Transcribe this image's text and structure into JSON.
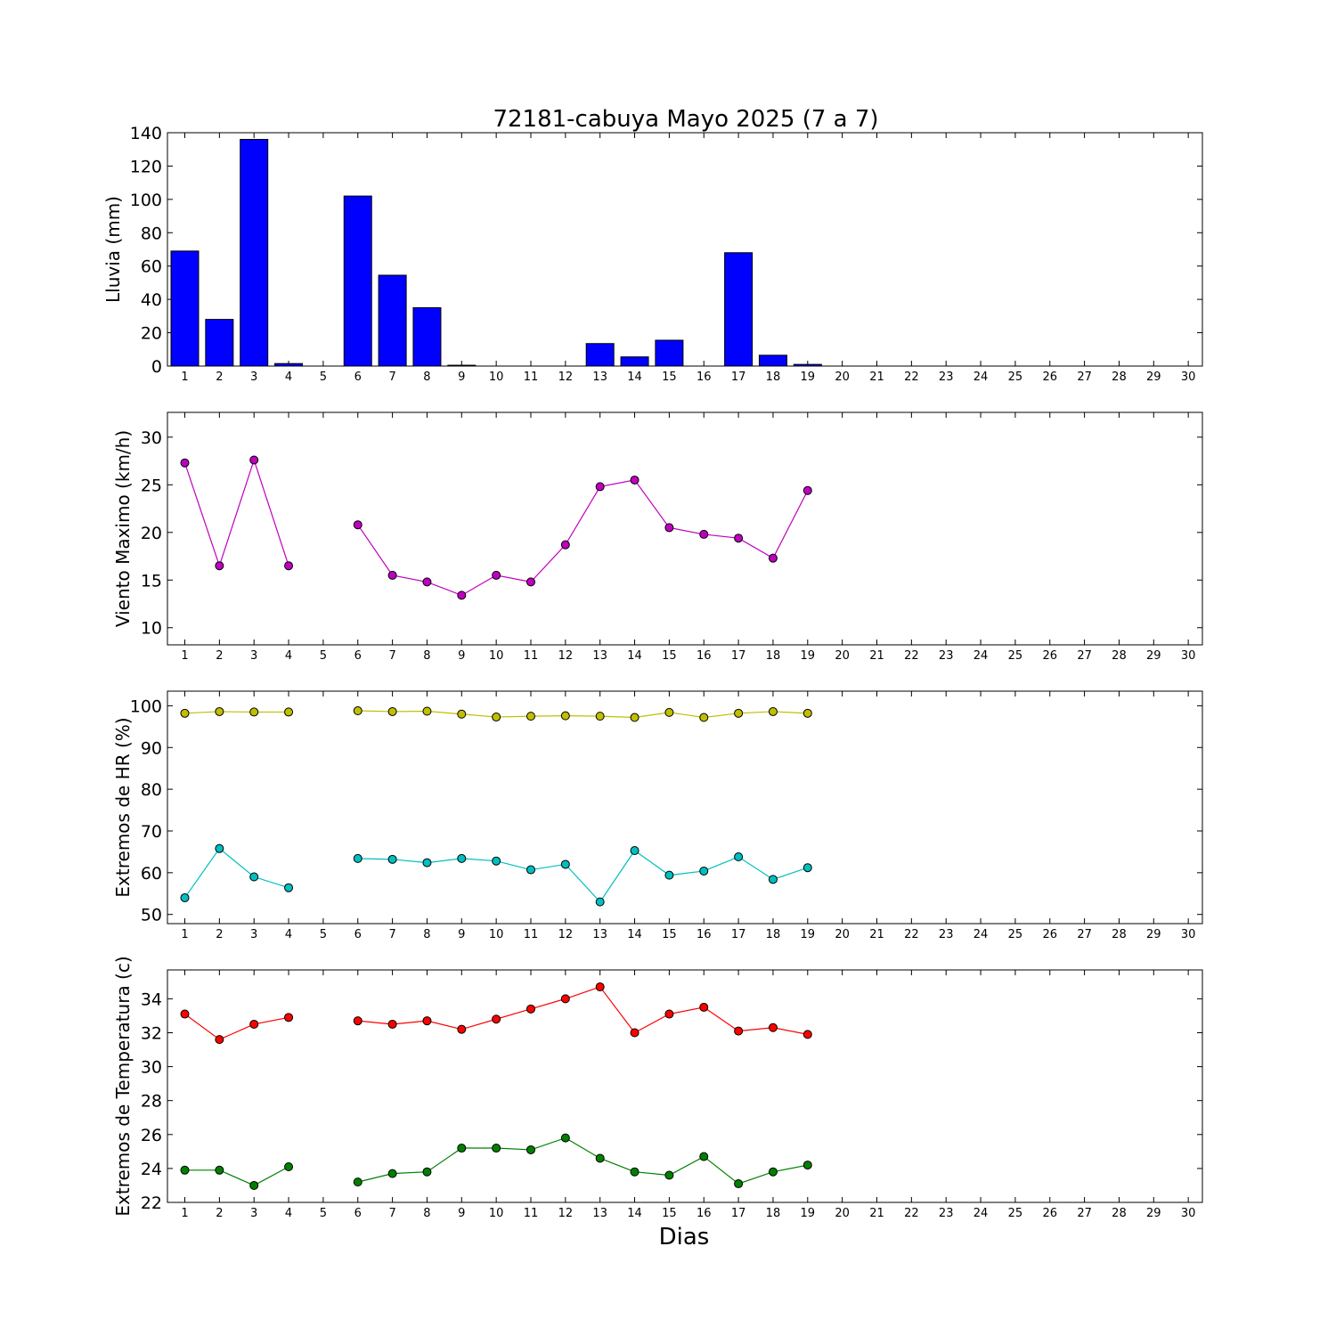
{
  "chart_data": [
    {
      "type": "bar",
      "title": "72181-cabuya Mayo 2025  (7 a 7)",
      "xlabel": "",
      "ylabel": "Lluvia (mm)",
      "categories": [
        "1",
        "2",
        "3",
        "4",
        "5",
        "6",
        "7",
        "8",
        "9",
        "10",
        "11",
        "12",
        "13",
        "14",
        "15",
        "16",
        "17",
        "18",
        "19",
        "20",
        "21",
        "22",
        "23",
        "24",
        "25",
        "26",
        "27",
        "28",
        "29",
        "30"
      ],
      "values": [
        69,
        28,
        136,
        1.5,
        0,
        102,
        54.5,
        35,
        0.5,
        0,
        0,
        0,
        13.5,
        5.5,
        15.5,
        0,
        68,
        6.5,
        1,
        null,
        null,
        null,
        null,
        null,
        null,
        null,
        null,
        null,
        null,
        null
      ],
      "yticks": [
        0,
        20,
        40,
        60,
        80,
        100,
        120,
        140
      ],
      "ylim": [
        0,
        140
      ],
      "color": "#0000ff",
      "grid": false
    },
    {
      "type": "line",
      "xlabel": "",
      "ylabel": "Viento Maximo (km/h)",
      "categories": [
        "1",
        "2",
        "3",
        "4",
        "5",
        "6",
        "7",
        "8",
        "9",
        "10",
        "11",
        "12",
        "13",
        "14",
        "15",
        "16",
        "17",
        "18",
        "19",
        "20",
        "21",
        "22",
        "23",
        "24",
        "25",
        "26",
        "27",
        "28",
        "29",
        "30"
      ],
      "series": [
        {
          "color": "#bf00bf",
          "values": [
            27.3,
            16.5,
            27.6,
            16.5,
            null,
            20.8,
            15.5,
            14.8,
            13.4,
            15.5,
            14.8,
            18.7,
            24.8,
            25.5,
            20.5,
            19.8,
            19.4,
            17.3,
            24.4,
            null,
            null,
            null,
            null,
            null,
            null,
            null,
            null,
            null,
            null,
            null
          ]
        }
      ],
      "yticks": [
        10,
        15,
        20,
        25,
        30
      ],
      "ylim": [
        8.2,
        32.6
      ],
      "grid": false
    },
    {
      "type": "line",
      "xlabel": "",
      "ylabel": "Extremos de HR (%)",
      "categories": [
        "1",
        "2",
        "3",
        "4",
        "5",
        "6",
        "7",
        "8",
        "9",
        "10",
        "11",
        "12",
        "13",
        "14",
        "15",
        "16",
        "17",
        "18",
        "19",
        "20",
        "21",
        "22",
        "23",
        "24",
        "25",
        "26",
        "27",
        "28",
        "29",
        "30"
      ],
      "series": [
        {
          "color": "#bfbf00",
          "values": [
            98.2,
            98.6,
            98.5,
            98.5,
            null,
            98.8,
            98.6,
            98.7,
            98.0,
            97.3,
            97.5,
            97.6,
            97.5,
            97.2,
            98.4,
            97.2,
            98.2,
            98.6,
            98.2,
            null,
            null,
            null,
            null,
            null,
            null,
            null,
            null,
            null,
            null,
            null
          ]
        },
        {
          "color": "#00bfbf",
          "values": [
            54.0,
            65.8,
            59.0,
            56.4,
            null,
            63.4,
            63.2,
            62.4,
            63.4,
            62.8,
            60.7,
            62.0,
            53.0,
            65.3,
            59.4,
            60.4,
            63.8,
            58.4,
            61.2,
            null,
            null,
            null,
            null,
            null,
            null,
            null,
            null,
            null,
            null,
            null
          ]
        }
      ],
      "yticks": [
        50,
        60,
        70,
        80,
        90,
        100
      ],
      "ylim": [
        47.8,
        103.5
      ],
      "grid": false
    },
    {
      "type": "line",
      "xlabel": "Dias",
      "ylabel": "Extremos de Temperatura (c)",
      "categories": [
        "1",
        "2",
        "3",
        "4",
        "5",
        "6",
        "7",
        "8",
        "9",
        "10",
        "11",
        "12",
        "13",
        "14",
        "15",
        "16",
        "17",
        "18",
        "19",
        "20",
        "21",
        "22",
        "23",
        "24",
        "25",
        "26",
        "27",
        "28",
        "29",
        "30"
      ],
      "series": [
        {
          "color": "#ff0000",
          "values": [
            33.1,
            31.6,
            32.5,
            32.9,
            null,
            32.7,
            32.5,
            32.7,
            32.2,
            32.8,
            33.4,
            34.0,
            34.7,
            32.0,
            33.1,
            33.5,
            32.1,
            32.3,
            31.9,
            null,
            null,
            null,
            null,
            null,
            null,
            null,
            null,
            null,
            null,
            null
          ]
        },
        {
          "color": "#008000",
          "values": [
            23.9,
            23.9,
            23.0,
            24.1,
            null,
            23.2,
            23.7,
            23.8,
            25.2,
            25.2,
            25.1,
            25.8,
            24.6,
            23.8,
            23.6,
            24.7,
            23.1,
            23.8,
            24.2,
            null,
            null,
            null,
            null,
            null,
            null,
            null,
            null,
            null,
            null,
            null
          ]
        }
      ],
      "yticks": [
        22,
        24,
        26,
        28,
        30,
        32,
        34
      ],
      "ylim": [
        22,
        35.7
      ],
      "grid": false
    }
  ]
}
